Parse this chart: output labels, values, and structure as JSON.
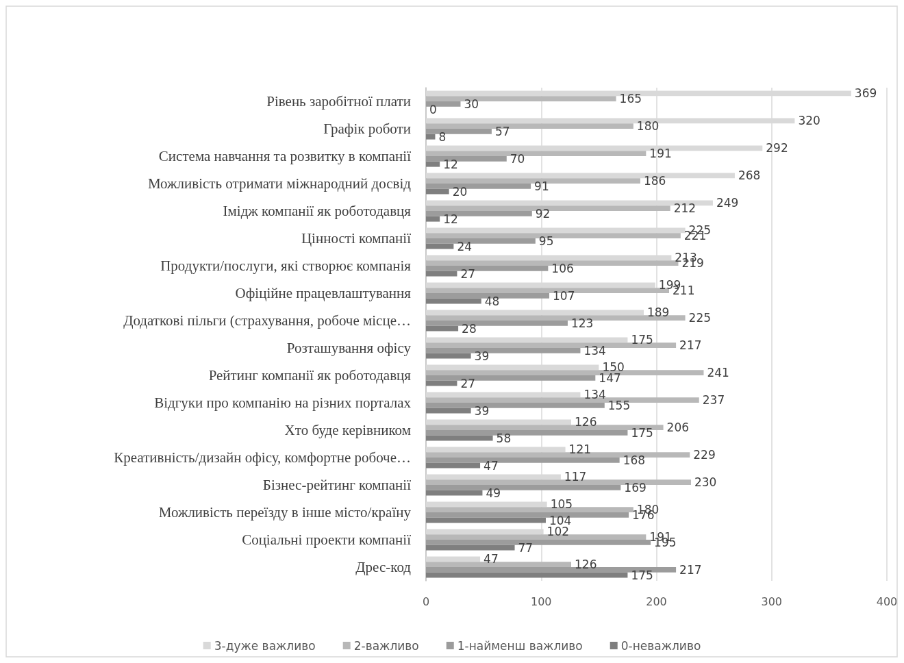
{
  "chart_data": {
    "type": "bar",
    "orientation": "horizontal",
    "data_labels": true,
    "grid": "x",
    "legend": "bottom",
    "categories": [
      "Рівень заробітної плати",
      "Графік роботи",
      "Система навчання та розвитку в компанії",
      "Можливість отримати міжнародний досвід",
      "Імідж компанії як роботодавця",
      "Цінності компанії",
      "Продукти/послуги, які створює компанія",
      "Офіційне працевлаштування",
      "Додаткові пільги (страхування, робоче місце…",
      "Розташування офісу",
      "Рейтинг компанії як роботодавця",
      "Відгуки про компанію на різних порталах",
      "Хто буде керівником",
      "Креативність/дизайн офісу, комфортне робоче…",
      "Бізнес-рейтинг компанії",
      "Можливість переїзду в інше місто/країну",
      "Соціальні проекти компанії",
      "Дрес-код"
    ],
    "xlim": [
      0,
      400
    ],
    "xticks": [
      0,
      100,
      200,
      300,
      400
    ],
    "series": [
      {
        "name": "3-дуже важливо",
        "color": "#d9d9d9",
        "values": [
          369,
          320,
          292,
          268,
          249,
          225,
          213,
          199,
          189,
          175,
          150,
          134,
          126,
          121,
          117,
          105,
          102,
          47
        ]
      },
      {
        "name": "2-важливо",
        "color": "#b8b8b8",
        "values": [
          165,
          180,
          191,
          186,
          212,
          221,
          219,
          211,
          225,
          217,
          241,
          237,
          206,
          229,
          230,
          180,
          191,
          126
        ]
      },
      {
        "name": "1-найменш важливо",
        "color": "#9c9c9c",
        "values": [
          30,
          57,
          70,
          91,
          92,
          95,
          106,
          107,
          123,
          134,
          147,
          155,
          175,
          168,
          169,
          176,
          195,
          217
        ]
      },
      {
        "name": "0-неважливо",
        "color": "#7f7f7f",
        "values": [
          0,
          8,
          12,
          20,
          12,
          24,
          27,
          48,
          28,
          39,
          27,
          39,
          58,
          47,
          49,
          104,
          77,
          175
        ]
      }
    ]
  }
}
